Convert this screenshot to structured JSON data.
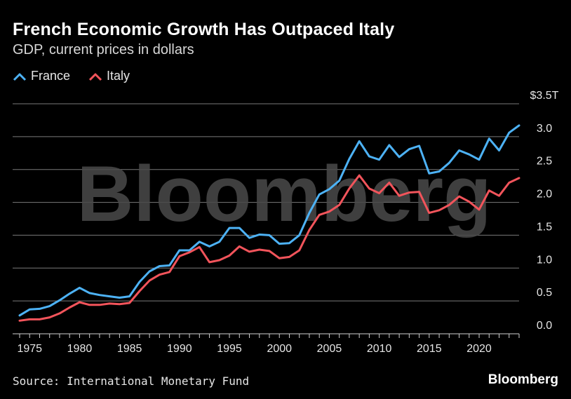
{
  "header": {
    "title": "French Economic Growth Has Outpaced Italy",
    "subtitle": "GDP, current prices in dollars"
  },
  "footer": {
    "source": "Source: International Monetary Fund",
    "brand": "Bloomberg"
  },
  "watermark": "Bloomberg",
  "colors": {
    "france": "#4db2f5",
    "italy": "#f2545b",
    "grid": "#7a7a7a",
    "background": "#000000"
  },
  "chart_data": {
    "type": "line",
    "title": "French Economic Growth Has Outpaced Italy",
    "subtitle": "GDP, current prices in dollars",
    "xlabel": "",
    "ylabel": "",
    "xlim": [
      1974,
      2024
    ],
    "ylim": [
      0,
      3.5
    ],
    "grid": true,
    "legend_position": "top-left",
    "x_ticks": [
      1975,
      1980,
      1985,
      1990,
      1995,
      2000,
      2005,
      2010,
      2015,
      2020
    ],
    "y_ticks": [
      {
        "value": 0,
        "label": "0.0"
      },
      {
        "value": 0.5,
        "label": "0.5"
      },
      {
        "value": 1.0,
        "label": "1.0"
      },
      {
        "value": 1.5,
        "label": "1.5"
      },
      {
        "value": 2.0,
        "label": "2.0"
      },
      {
        "value": 2.5,
        "label": "2.5"
      },
      {
        "value": 3.0,
        "label": "3.0"
      },
      {
        "value": 3.5,
        "label": "$3.5T"
      }
    ],
    "x": [
      1974,
      1975,
      1976,
      1977,
      1978,
      1979,
      1980,
      1981,
      1982,
      1983,
      1984,
      1985,
      1986,
      1987,
      1988,
      1989,
      1990,
      1991,
      1992,
      1993,
      1994,
      1995,
      1996,
      1997,
      1998,
      1999,
      2000,
      2001,
      2002,
      2003,
      2004,
      2005,
      2006,
      2007,
      2008,
      2009,
      2010,
      2011,
      2012,
      2013,
      2014,
      2015,
      2016,
      2017,
      2018,
      2019,
      2020,
      2021,
      2022,
      2023,
      2024
    ],
    "series": [
      {
        "name": "France",
        "color": "#4db2f5",
        "values": [
          0.28,
          0.37,
          0.38,
          0.42,
          0.51,
          0.61,
          0.7,
          0.62,
          0.59,
          0.57,
          0.55,
          0.57,
          0.79,
          0.95,
          1.03,
          1.04,
          1.27,
          1.27,
          1.4,
          1.33,
          1.4,
          1.61,
          1.61,
          1.46,
          1.51,
          1.5,
          1.37,
          1.38,
          1.5,
          1.84,
          2.12,
          2.2,
          2.33,
          2.66,
          2.93,
          2.7,
          2.65,
          2.87,
          2.69,
          2.81,
          2.86,
          2.44,
          2.47,
          2.6,
          2.79,
          2.73,
          2.65,
          2.97,
          2.79,
          3.06,
          3.17
        ]
      },
      {
        "name": "Italy",
        "color": "#f2545b",
        "values": [
          0.2,
          0.22,
          0.22,
          0.25,
          0.31,
          0.4,
          0.48,
          0.44,
          0.44,
          0.46,
          0.45,
          0.47,
          0.65,
          0.81,
          0.9,
          0.94,
          1.18,
          1.24,
          1.32,
          1.09,
          1.12,
          1.19,
          1.33,
          1.25,
          1.28,
          1.26,
          1.15,
          1.17,
          1.27,
          1.58,
          1.81,
          1.86,
          1.96,
          2.21,
          2.41,
          2.21,
          2.14,
          2.3,
          2.1,
          2.15,
          2.16,
          1.84,
          1.88,
          1.96,
          2.09,
          2.01,
          1.89,
          2.18,
          2.1,
          2.3,
          2.37
        ]
      }
    ]
  }
}
